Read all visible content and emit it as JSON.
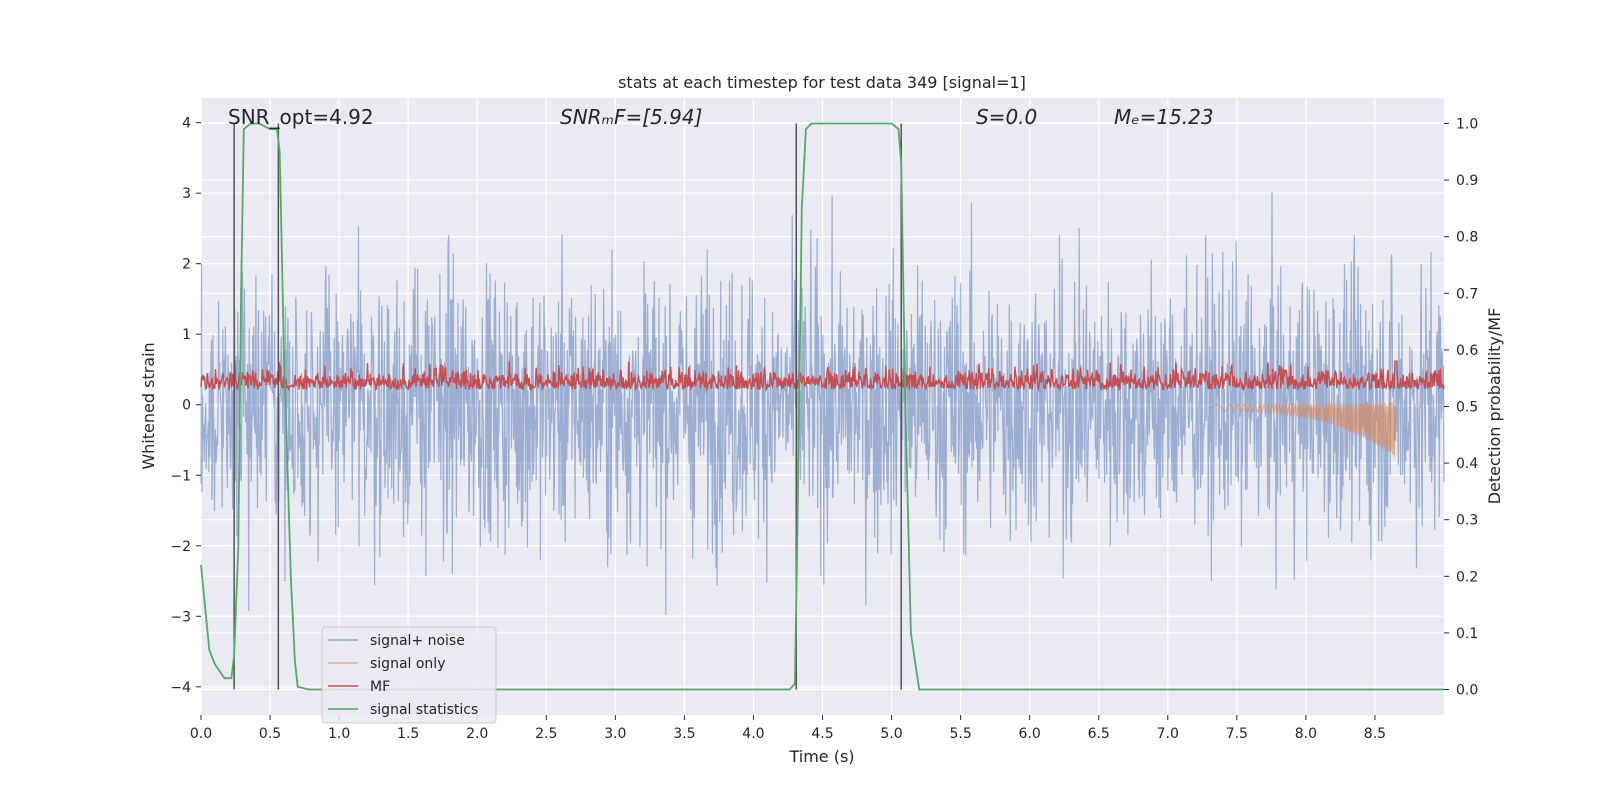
{
  "chart_data": {
    "type": "line",
    "title": "stats at each timestep for test data 349 [signal=1]",
    "xlabel": "Time (s)",
    "ylabel": "Whitened strain",
    "y2label": "Detection probability/MF",
    "xlim": [
      0.0,
      9.0
    ],
    "ylim": [
      -4.4,
      4.35
    ],
    "y2lim": [
      -0.045,
      1.045
    ],
    "xticks": [
      "0.0",
      "0.5",
      "1.0",
      "1.5",
      "2.0",
      "2.5",
      "3.0",
      "3.5",
      "4.0",
      "4.5",
      "5.0",
      "5.5",
      "6.0",
      "6.5",
      "7.0",
      "7.5",
      "8.0",
      "8.5"
    ],
    "yticks": [
      "4",
      "3",
      "2",
      "1",
      "0",
      "−1",
      "−2",
      "−3",
      "−4"
    ],
    "y2ticks": [
      "1.0",
      "0.9",
      "0.8",
      "0.7",
      "0.6",
      "0.5",
      "0.4",
      "0.3",
      "0.2",
      "0.1",
      "0.0"
    ],
    "annotations": [
      {
        "name": "snr-opt",
        "text": "SNR_opt=4.92",
        "x": 0.19
      },
      {
        "name": "snr-mf",
        "text": "SNRₘF=[5.94]",
        "x": 2.6
      },
      {
        "name": "s-stat",
        "text": "S=0.0",
        "x": 5.6
      },
      {
        "name": "mc",
        "text": "Mₑ=15.23",
        "x": 6.6
      }
    ],
    "vlines": [
      0.24,
      0.56,
      4.31,
      5.07
    ],
    "legend": {
      "placement": "lower-left",
      "entries": [
        {
          "label": "signal+ noise",
          "color": "#4c72b0"
        },
        {
          "label": "signal only",
          "color": "#dd8452"
        },
        {
          "label": "MF",
          "color": "#c44e52"
        },
        {
          "label": "signal statistics",
          "color": "#55a868"
        }
      ]
    },
    "series": [
      {
        "name": "signal statistics",
        "axis": "right",
        "color": "#55a868",
        "x": [
          0.0,
          0.06,
          0.1,
          0.17,
          0.22,
          0.24,
          0.27,
          0.29,
          0.31,
          0.36,
          0.42,
          0.5,
          0.55,
          0.57,
          0.6,
          0.65,
          0.68,
          0.7,
          0.78,
          1.0,
          2.0,
          3.0,
          4.0,
          4.26,
          4.3,
          4.32,
          4.35,
          4.38,
          4.42,
          4.5,
          5.0,
          5.05,
          5.07,
          5.1,
          5.14,
          5.17,
          5.2,
          6.0,
          7.0,
          8.0,
          9.0
        ],
        "y": [
          0.22,
          0.07,
          0.045,
          0.02,
          0.02,
          0.06,
          0.25,
          0.7,
          0.99,
          1.0,
          1.0,
          0.99,
          0.99,
          0.95,
          0.6,
          0.2,
          0.05,
          0.005,
          0.0,
          0.0,
          0.0,
          0.0,
          0.0,
          0.0,
          0.01,
          0.3,
          0.85,
          0.99,
          1.0,
          1.0,
          1.0,
          0.99,
          0.93,
          0.5,
          0.1,
          0.05,
          0.0,
          0.0,
          0.0,
          0.0,
          0.0
        ]
      }
    ]
  }
}
